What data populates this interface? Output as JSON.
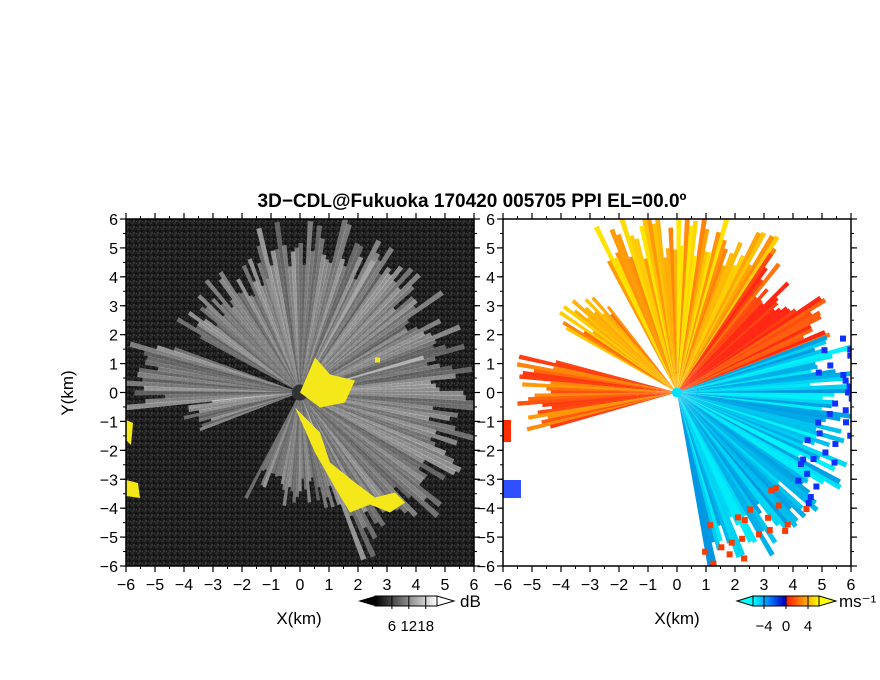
{
  "chart_data": {
    "type": "heatmap",
    "title": "3D−CDL@Fukuoka 170420 005705 PPI EL=00.0º",
    "x_ticks": [
      "−6",
      "−5",
      "−4",
      "−3",
      "−2",
      "−1",
      "0",
      "1",
      "2",
      "3",
      "4",
      "5",
      "6"
    ],
    "y_ticks": [
      "6",
      "5",
      "4",
      "3",
      "2",
      "1",
      "0",
      "−1",
      "−2",
      "−3",
      "−4",
      "−5",
      "−6"
    ],
    "panels": [
      {
        "name": "reflectivity",
        "xlabel": "X(km)",
        "ylabel": "Y(km)",
        "xlim": [
          -6,
          6
        ],
        "ylim": [
          -6,
          6
        ],
        "colorbar": {
          "label": "dB",
          "ticks": [
            "6",
            "12",
            "18"
          ],
          "tick_values": [
            6,
            12,
            18
          ],
          "range": [
            0,
            22
          ],
          "colors": [
            "#000000",
            "#ffffff"
          ]
        }
      },
      {
        "name": "velocity",
        "xlabel": "X(km)",
        "ylabel": "",
        "xlim": [
          -6,
          6
        ],
        "ylim": [
          -6,
          6
        ],
        "colorbar": {
          "label": "ms⁻¹",
          "ticks": [
            "−4",
            "0",
            "4"
          ],
          "tick_values": [
            -4,
            0,
            4
          ],
          "range": [
            -6,
            6
          ],
          "colors": [
            "#00ffff",
            "#0060ff",
            "#0000c0",
            "#ff3000",
            "#ff9900",
            "#ffff00"
          ]
        }
      }
    ],
    "overlay_color": "#f5e81a",
    "background_color": "#1c1c1c"
  }
}
